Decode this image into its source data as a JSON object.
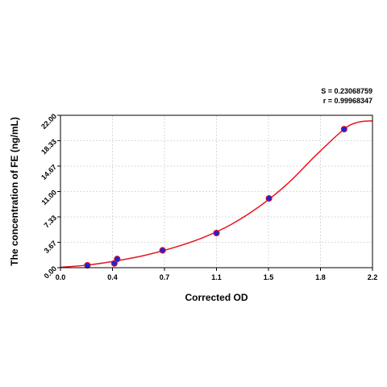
{
  "chart_data": {
    "type": "scatter",
    "xlabel": "Corrected OD",
    "ylabel": "The concentration of FE (ng/mL)",
    "x_ticks": [
      "0.0",
      "0.4",
      "0.7",
      "1.1",
      "1.5",
      "1.8",
      "2.2"
    ],
    "y_ticks": [
      "0.00",
      "3.67",
      "7.33",
      "11.00",
      "14.67",
      "18.33",
      "22.00"
    ],
    "xlim": [
      0.0,
      2.2
    ],
    "ylim": [
      0.0,
      22.0
    ],
    "grid": true,
    "stats": {
      "s_label": "S = 0.23068759",
      "r_label": "r = 0.99968347"
    },
    "series": [
      {
        "points": [
          {
            "x": 0.19,
            "y": 0.34
          },
          {
            "x": 0.38,
            "y": 0.62
          },
          {
            "x": 0.4,
            "y": 1.25
          },
          {
            "x": 0.72,
            "y": 2.5
          },
          {
            "x": 1.1,
            "y": 5.0
          },
          {
            "x": 1.47,
            "y": 10.0
          },
          {
            "x": 2.0,
            "y": 20.0
          }
        ]
      }
    ],
    "fit_curve": {
      "x": [
        0.0,
        0.2,
        0.4,
        0.6,
        0.8,
        1.0,
        1.2,
        1.4,
        1.6,
        1.8,
        2.0,
        2.1,
        2.2
      ],
      "y": [
        0.05,
        0.4,
        1.0,
        1.8,
        2.9,
        4.3,
        6.2,
        8.8,
        12.1,
        16.2,
        20.0,
        21.0,
        21.2
      ]
    },
    "colors": {
      "curve": "#e8141c",
      "point_fill": "#1f24d6",
      "point_edge": "#e8141c",
      "grid": "#cfcfcf",
      "frame": "#000000"
    }
  }
}
